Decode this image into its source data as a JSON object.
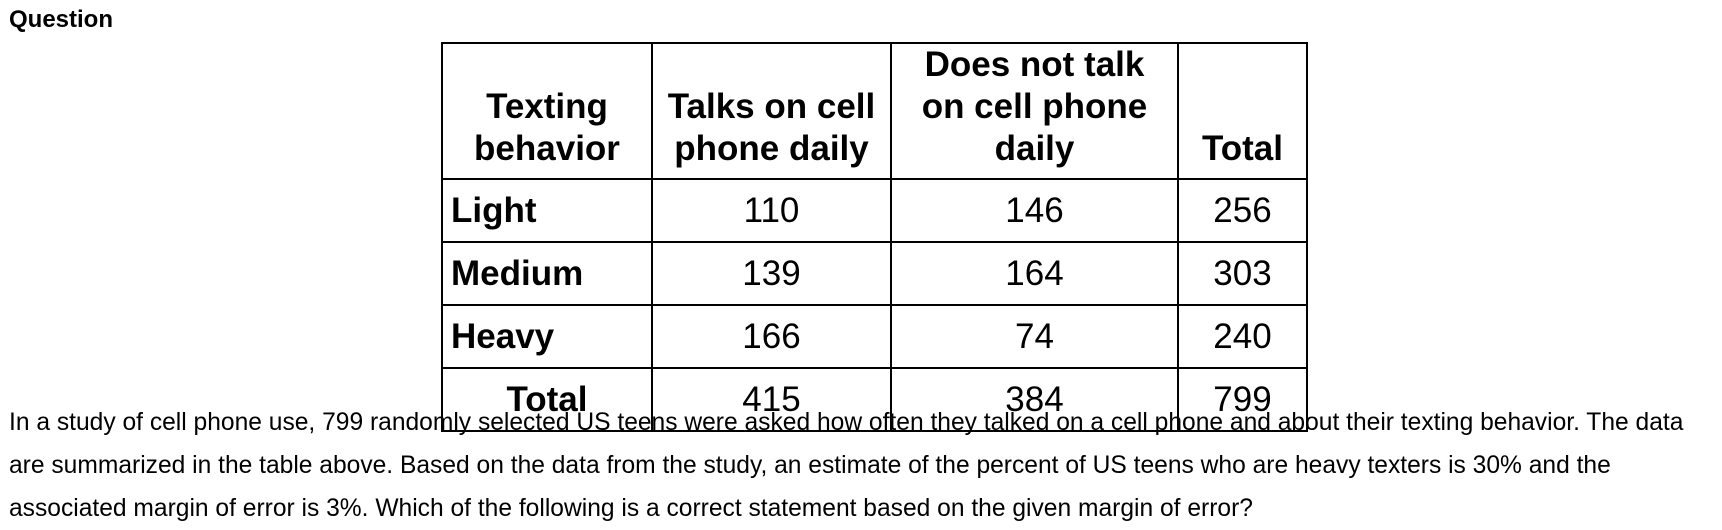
{
  "label": "Question",
  "table": {
    "header": [
      "Texting behavior",
      "Talks on cell phone daily",
      "Does not talk on cell phone daily",
      "Total"
    ],
    "rows": [
      [
        "Light",
        110,
        146,
        256
      ],
      [
        "Medium",
        139,
        164,
        303
      ],
      [
        "Heavy",
        166,
        74,
        240
      ],
      [
        "Total",
        415,
        384,
        799
      ]
    ]
  },
  "paragraph": "In a study of cell phone use, 799 randomly selected US teens were asked how often they talked on a cell phone and about their texting behavior. The data are summarized in the table above. Based on the data from the study, an estimate of the percent of US teens who are heavy texters is 30% and the associated margin of error is 3%. Which of the following is a correct statement based on the given margin of error?"
}
